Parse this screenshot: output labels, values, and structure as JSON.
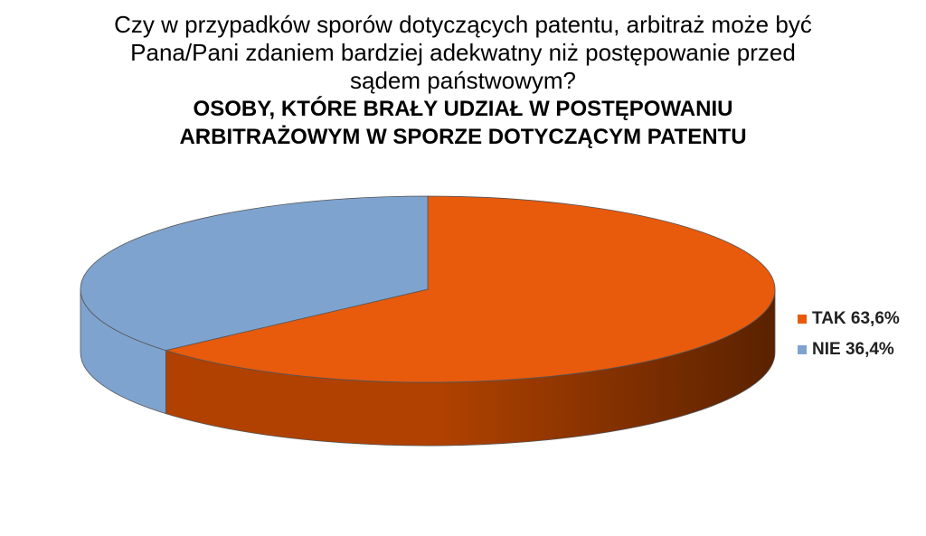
{
  "chart_data": {
    "type": "pie",
    "style": "3d",
    "title": "Czy w przypadków sporów dotyczących patentu, arbitraż może być\nPana/Pani zdaniem bardziej adekwatny niż postępowanie przed\nsądem państwowym?",
    "subtitle": "OSOBY, KTÓRE BRAŁY UDZIAŁ W POSTĘPOWANIU\nARBITRAŻOWYM W SPORZE DOTYCZĄCYM PATENTU",
    "slices": [
      {
        "label": "TAK 63,6%",
        "value": 63.6,
        "color": "#e85a0c",
        "side_color": "#b04100",
        "side_color_dark": "#5a2200"
      },
      {
        "label": "NIE 36,4%",
        "value": 36.4,
        "color": "#7fa3cf",
        "side_color": "#7fa3cf",
        "side_color_dark": "#6f93bf"
      }
    ],
    "legend_position": "right"
  }
}
